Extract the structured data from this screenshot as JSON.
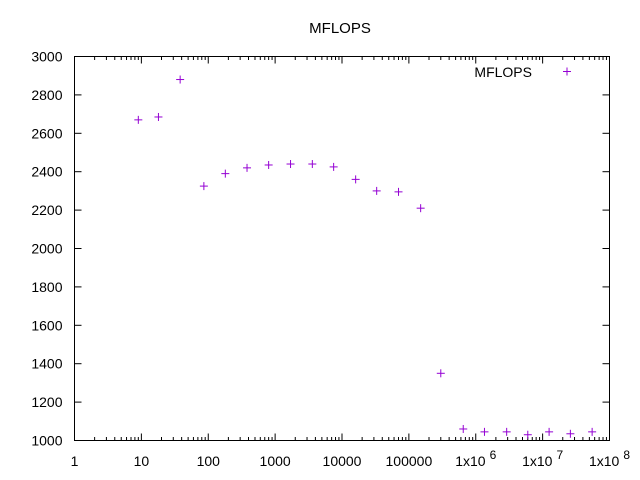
{
  "chart_data": {
    "type": "scatter",
    "title": "MFLOPS",
    "xlabel": "",
    "ylabel": "",
    "x_scale": "log",
    "xlim": [
      1,
      100000000
    ],
    "ylim": [
      1000,
      3000
    ],
    "grid": false,
    "legend_position": "top-right",
    "x_ticks": [
      {
        "value": 1,
        "label": "1"
      },
      {
        "value": 10,
        "label": "10"
      },
      {
        "value": 100,
        "label": "100"
      },
      {
        "value": 1000,
        "label": "1000"
      },
      {
        "value": 10000,
        "label": "10000"
      },
      {
        "value": 100000,
        "label": "100000"
      },
      {
        "value": 1000000,
        "mantissa": "1x10",
        "exponent": "6"
      },
      {
        "value": 10000000,
        "mantissa": "1x10",
        "exponent": "7"
      },
      {
        "value": 100000000,
        "mantissa": "1x10",
        "exponent": "8"
      }
    ],
    "y_ticks": [
      1000,
      1200,
      1400,
      1600,
      1800,
      2000,
      2200,
      2400,
      2600,
      2800,
      3000
    ],
    "series": [
      {
        "name": "MFLOPS",
        "color": "#9400d3",
        "marker": "plus",
        "points": [
          {
            "x": 9,
            "y": 2670
          },
          {
            "x": 18,
            "y": 2685
          },
          {
            "x": 38,
            "y": 2880
          },
          {
            "x": 86,
            "y": 2325
          },
          {
            "x": 180,
            "y": 2390
          },
          {
            "x": 380,
            "y": 2420
          },
          {
            "x": 800,
            "y": 2435
          },
          {
            "x": 1700,
            "y": 2440
          },
          {
            "x": 3600,
            "y": 2440
          },
          {
            "x": 7500,
            "y": 2425
          },
          {
            "x": 16000,
            "y": 2360
          },
          {
            "x": 33000,
            "y": 2300
          },
          {
            "x": 70000,
            "y": 2295
          },
          {
            "x": 150000,
            "y": 2210
          },
          {
            "x": 300000,
            "y": 1350
          },
          {
            "x": 650000,
            "y": 1060
          },
          {
            "x": 1350000,
            "y": 1045
          },
          {
            "x": 2900000,
            "y": 1045
          },
          {
            "x": 6000000,
            "y": 1030
          },
          {
            "x": 12500000,
            "y": 1045
          },
          {
            "x": 26000000,
            "y": 1035
          },
          {
            "x": 55000000,
            "y": 1045
          }
        ]
      }
    ]
  }
}
